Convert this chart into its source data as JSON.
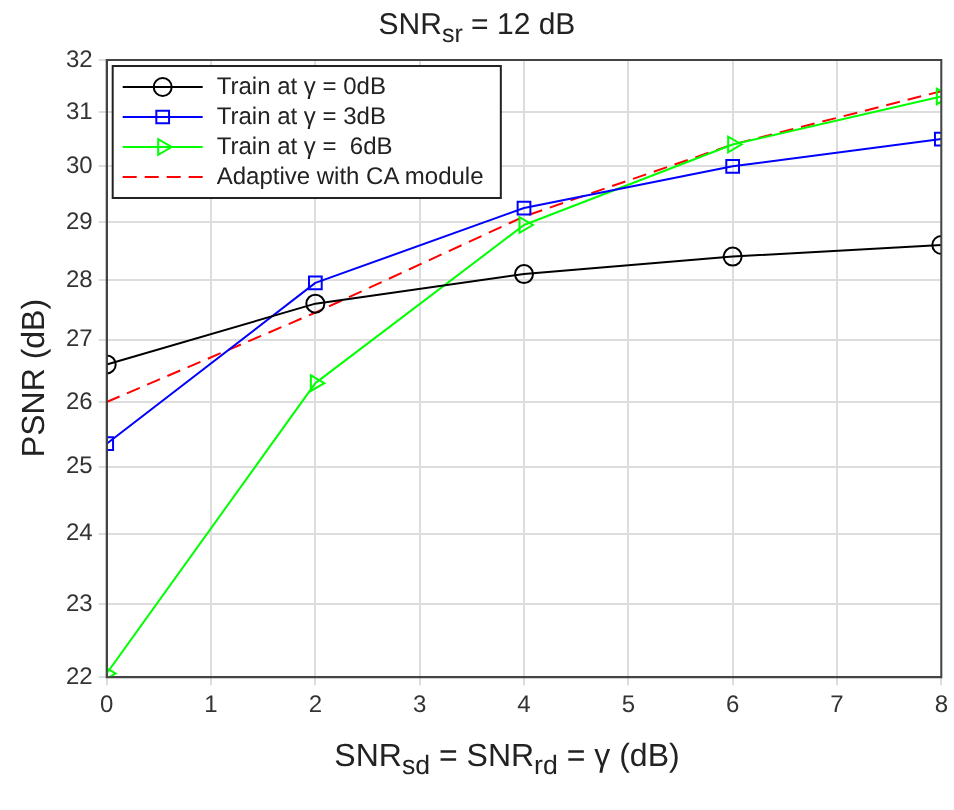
{
  "chart_data": {
    "type": "line",
    "title": "SNR$_{sr}$ = 12 dB",
    "xlabel": "SNR$_{sd}$ = SNR$_{rd}$ = γ (dB)",
    "ylabel": "PSNR (dB)",
    "x": [
      0,
      2,
      4,
      6,
      8
    ],
    "series": [
      {
        "name": "Train at γ = 0dB",
        "color": "#000000",
        "marker": "circle",
        "line_style": "solid",
        "values": [
          26.6,
          27.6,
          28.1,
          28.4,
          28.6
        ]
      },
      {
        "name": "Train at γ = 3dB",
        "color": "#0000ff",
        "marker": "square",
        "line_style": "solid",
        "values": [
          25.35,
          27.95,
          29.25,
          30.0,
          30.5
        ]
      },
      {
        "name": "Train at γ =  6dB",
        "color": "#00ff00",
        "marker": "triangle",
        "line_style": "solid",
        "values": [
          22.05,
          26.3,
          28.95,
          30.4,
          31.3
        ]
      },
      {
        "name": "Adaptive with CA module",
        "color": "#ff0000",
        "marker": "none",
        "line_style": "dashed",
        "values": [
          26.0,
          27.45,
          29.1,
          30.4,
          31.4
        ]
      }
    ],
    "xlim": [
      0,
      8
    ],
    "xticks": [
      0,
      1,
      2,
      3,
      4,
      5,
      6,
      7,
      8
    ],
    "ylim": [
      22,
      32
    ],
    "yticks": [
      22,
      23,
      24,
      25,
      26,
      27,
      28,
      29,
      30,
      31,
      32
    ],
    "log": "y",
    "grid": true,
    "legend": "top left"
  }
}
